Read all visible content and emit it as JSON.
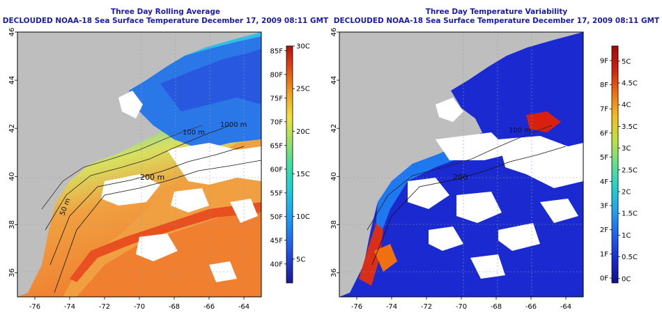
{
  "left_panel": {
    "title_line1": "Three Day Rolling Average",
    "title_line2": "DECLOUDED NOAA-18 Sea Surface Temperature December 17, 2009 08:11 GMT",
    "contour_labels": [
      "200 m",
      "50 m",
      "100 m",
      "1000 m"
    ],
    "colorbar": {
      "f_ticks": [
        "40F",
        "45F",
        "50F",
        "55F",
        "60F",
        "65F",
        "70F",
        "75F",
        "80F",
        "85F"
      ],
      "c_ticks": [
        "5C",
        "10C",
        "15C",
        "20C",
        "25C",
        "30C"
      ],
      "colors": [
        "#1a1a8c",
        "#2140d8",
        "#1e78f0",
        "#1ea8f0",
        "#20d0d8",
        "#40e0a0",
        "#a0e060",
        "#f0e040",
        "#f0a020",
        "#e05010",
        "#b81010"
      ]
    }
  },
  "right_panel": {
    "title_line1": "Three Day Temperature Variability",
    "title_line2": "DECLOUDED NOAA-18 Sea Surface Temperature December 17, 2009 08:11 GMT",
    "contour_labels": [
      "200",
      "100 m"
    ],
    "colorbar": {
      "f_ticks": [
        "0F",
        "1F",
        "2F",
        "3F",
        "4F",
        "5F",
        "6F",
        "7F",
        "8F",
        "9F"
      ],
      "c_ticks": [
        "0C",
        "0.5C",
        "1C",
        "1.5C",
        "2C",
        "2.5C",
        "3C",
        "3.5C",
        "4C",
        "4.5C",
        "5C"
      ],
      "colors": [
        "#10108c",
        "#1a2ad0",
        "#1e60f0",
        "#20a0f0",
        "#20d0d0",
        "#60e090",
        "#c0e040",
        "#f0c020",
        "#f07010",
        "#d02010",
        "#a00808"
      ]
    }
  },
  "axes": {
    "lon_ticks": [
      "-76",
      "-74",
      "-72",
      "-70",
      "-68",
      "-66",
      "-64"
    ],
    "lat_ticks": [
      "36",
      "38",
      "40",
      "42",
      "44",
      "46"
    ]
  },
  "colors": {
    "title": "#1a1aa8",
    "land": "#bebebe",
    "cloud": "#ffffff"
  }
}
